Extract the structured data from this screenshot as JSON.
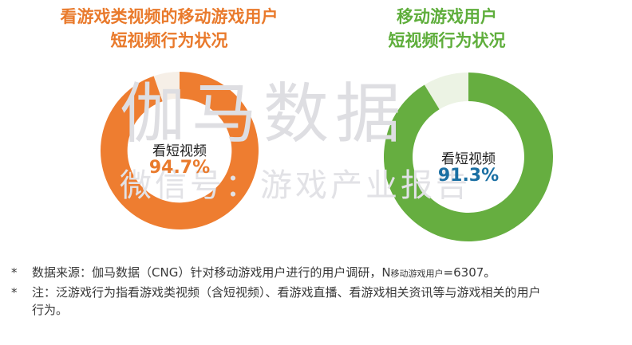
{
  "chart_data": [
    {
      "type": "pie",
      "title": "看游戏类视频的移动游戏用户短视频行为状况",
      "title_lines": [
        "看游戏类视频的移动游戏用户",
        "短视频行为状况"
      ],
      "slices": [
        {
          "label": "看短视频",
          "value": 94.7,
          "color": "#ee7d30"
        },
        {
          "label": "",
          "value": 5.3,
          "color": "#f6efe7"
        }
      ],
      "center_label": "看短视频",
      "center_value": "94.7%"
    },
    {
      "type": "pie",
      "title": "移动游戏用户短视频行为状况",
      "title_lines": [
        "移动游戏用户",
        "短视频行为状况"
      ],
      "slices": [
        {
          "label": "看短视频",
          "value": 91.3,
          "color": "#66ae40"
        },
        {
          "label": "",
          "value": 8.7,
          "color": "#ecf3e4"
        }
      ],
      "center_label": "看短视频",
      "center_value": "91.3%"
    }
  ],
  "watermark": {
    "main": "伽马数据",
    "sub": "微信号：游戏产业报告"
  },
  "notes": {
    "star": "*",
    "line1_prefix": "数据来源：伽马数据（CNG）针对移动游戏用户进行的用户调研，N",
    "line1_sub": "移动游戏用户",
    "line1_suffix": "=6307。",
    "line2_first": "注：泛游戏行为指看游戏类视频（含短视频）、看游戏直播、看游戏相关资讯等与游戏相关的用户",
    "line2_second": "行为。"
  }
}
